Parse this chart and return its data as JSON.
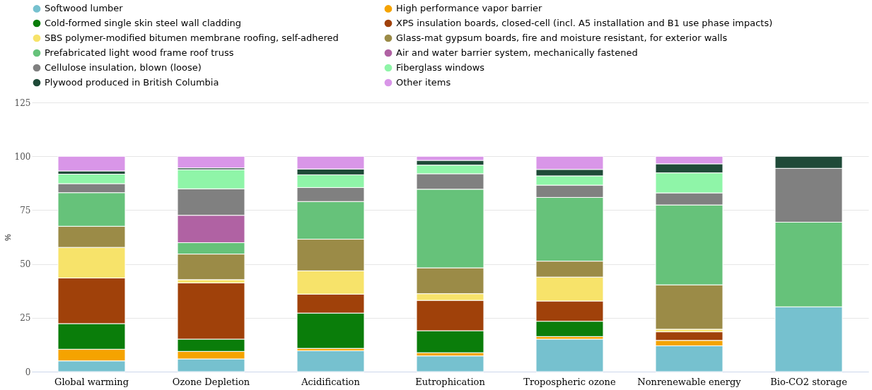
{
  "chart_data": {
    "type": "bar",
    "stacked": true,
    "ylabel": "%",
    "categories": [
      "Global warming",
      "Ozone Depletion",
      "Acidification",
      "Eutrophication",
      "Tropospheric ozone",
      "Nonrenewable energy",
      "Bio-CO2 storage"
    ],
    "series": [
      {
        "name": "Softwood lumber",
        "color": "#76c1cf",
        "values": [
          5.0,
          5.9,
          9.7,
          7.3,
          15.1,
          12.0,
          30.1
        ]
      },
      {
        "name": "High performance vapor barrier",
        "color": "#f5a300",
        "values": [
          5.4,
          3.5,
          1.1,
          1.5,
          1.2,
          2.5,
          null
        ]
      },
      {
        "name": "Cold-formed single skin steel wall cladding",
        "color": "#0a7d0a",
        "values": [
          11.9,
          5.7,
          16.4,
          10.2,
          7.1,
          null,
          null
        ]
      },
      {
        "name": "XPS insulation boards, closed-cell (incl. A5 installation and B1 use phase impacts)",
        "color": "#a0410a",
        "values": [
          21.2,
          26.1,
          8.8,
          14.1,
          9.4,
          4.0,
          null
        ]
      },
      {
        "name": "SBS polymer-modified bitumen membrane roofing, self-adhered",
        "color": "#f7e36a",
        "values": [
          14.2,
          1.5,
          10.8,
          3.1,
          11.1,
          1.2,
          null
        ]
      },
      {
        "name": "Glass-mat gypsum boards, fire and moisture resistant, for exterior walls",
        "color": "#9b8b47",
        "values": [
          9.8,
          11.9,
          14.7,
          12.0,
          7.4,
          20.6,
          null
        ]
      },
      {
        "name": "Prefabricated light wood frame roof truss",
        "color": "#66c27a",
        "values": [
          15.6,
          5.3,
          17.5,
          36.5,
          29.6,
          37.1,
          39.3
        ]
      },
      {
        "name": "Air and water barrier system, mechanically fastened",
        "color": "#b062a3",
        "values": [
          null,
          12.7,
          null,
          null,
          null,
          null,
          null
        ]
      },
      {
        "name": "Cellulose insulation, blown (loose)",
        "color": "#808080",
        "values": [
          4.2,
          12.3,
          6.5,
          7.2,
          5.7,
          5.6,
          25.0
        ]
      },
      {
        "name": "Fiberglass windows",
        "color": "#8ff5a8",
        "values": [
          4.4,
          8.9,
          5.9,
          4.0,
          4.3,
          9.3,
          null
        ]
      },
      {
        "name": "Plywood produced in British Columbia",
        "color": "#1f4a38",
        "values": [
          1.5,
          0.8,
          2.7,
          2.2,
          3.0,
          4.2,
          5.6
        ]
      },
      {
        "name": "Other items",
        "color": "#d996e8",
        "values": [
          6.8,
          5.4,
          5.9,
          1.9,
          6.1,
          3.5,
          null
        ]
      }
    ],
    "ylim": [
      0,
      125
    ],
    "yticks": [
      0,
      25,
      50,
      75,
      100,
      125
    ],
    "grid": "y",
    "legend": "top"
  }
}
